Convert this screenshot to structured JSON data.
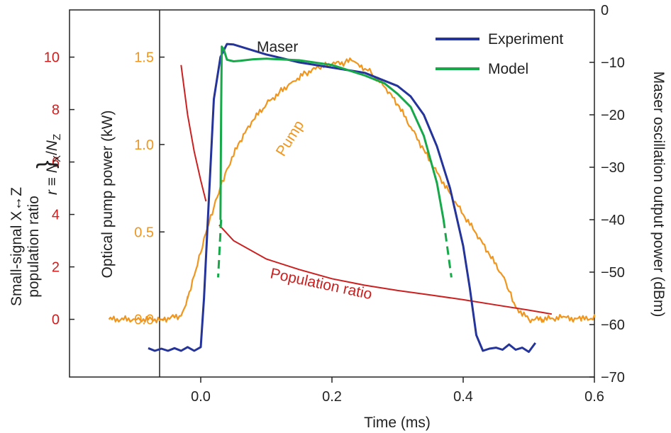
{
  "chart_data": {
    "type": "line",
    "xlabel": "Time (ms)",
    "xlim": [
      -0.2,
      0.6
    ],
    "x_ticks": [
      "0.0",
      "0.2",
      "0.4",
      "0.6"
    ],
    "y_left_outer": {
      "label_line1": "Small-signal X↔Z",
      "label_line2": "population ratio",
      "formula_r": "r",
      "formula_eq": " ≡ ",
      "formula_nx": "N",
      "formula_nx_sub": "X",
      "formula_slash": "/",
      "formula_nz": "N",
      "formula_nz_sub": "Z",
      "ticks": [
        "0",
        "2",
        "4",
        "6",
        "8",
        "10"
      ],
      "ylim": [
        -2.2,
        11.8
      ],
      "color": "#cc2020"
    },
    "y_left_inner": {
      "label": "Optical pump power (kW)",
      "ticks": [
        "0.0",
        "0.5",
        "1.0",
        "1.5"
      ],
      "ylim": [
        -0.33,
        1.77
      ],
      "color": "#f0961e"
    },
    "y_right": {
      "label": "Maser oscillation output power (dBm)",
      "ticks": [
        "0",
        "−10",
        "−20",
        "−30",
        "−40",
        "−50",
        "−60",
        "−70"
      ],
      "ylim": [
        -70,
        0
      ],
      "color": "#222222"
    },
    "legend": {
      "placement": "top-right",
      "entries": [
        {
          "label": "Experiment",
          "color": "#24349a"
        },
        {
          "label": "Model",
          "color": "#17a84a"
        }
      ]
    },
    "annotations": {
      "maser": "Maser",
      "pump": "Pump",
      "population": "Population ratio"
    },
    "series": [
      {
        "name": "Pump",
        "axis": "pump_kW",
        "color": "#f0961e",
        "x": [
          -0.14,
          -0.1,
          -0.06,
          -0.03,
          -0.02,
          -0.01,
          0.0,
          0.01,
          0.02,
          0.03,
          0.04,
          0.06,
          0.08,
          0.1,
          0.12,
          0.14,
          0.16,
          0.18,
          0.2,
          0.22,
          0.23,
          0.24,
          0.26,
          0.28,
          0.3,
          0.32,
          0.34,
          0.36,
          0.38,
          0.4,
          0.42,
          0.44,
          0.46,
          0.47,
          0.48,
          0.5,
          0.52,
          0.55,
          0.58,
          0.6
        ],
        "y": [
          0.0,
          0.0,
          0.0,
          0.02,
          0.12,
          0.25,
          0.38,
          0.52,
          0.64,
          0.76,
          0.86,
          1.02,
          1.14,
          1.23,
          1.3,
          1.36,
          1.41,
          1.44,
          1.46,
          1.47,
          1.48,
          1.46,
          1.41,
          1.33,
          1.23,
          1.1,
          0.97,
          0.84,
          0.72,
          0.6,
          0.49,
          0.37,
          0.25,
          0.16,
          0.07,
          0.0,
          0.0,
          0.01,
          0.0,
          0.01
        ]
      },
      {
        "name": "Population ratio",
        "axis": "ratio",
        "color": "#cc2020",
        "segments": [
          {
            "x": [
              -0.03,
              -0.02,
              -0.01,
              0.0,
              0.008
            ],
            "y": [
              9.7,
              7.8,
              6.4,
              5.3,
              4.5
            ]
          },
          {
            "x": [
              0.028,
              0.05,
              0.1,
              0.15,
              0.2,
              0.25,
              0.3,
              0.35,
              0.4,
              0.45,
              0.5,
              0.535
            ],
            "y": [
              3.6,
              3.0,
              2.3,
              1.9,
              1.55,
              1.3,
              1.1,
              0.93,
              0.75,
              0.55,
              0.35,
              0.2
            ]
          }
        ]
      },
      {
        "name": "Experiment",
        "axis": "dBm",
        "color": "#24349a",
        "x": [
          -0.08,
          -0.07,
          -0.06,
          -0.05,
          -0.04,
          -0.03,
          -0.02,
          -0.01,
          0.0,
          0.005,
          0.01,
          0.02,
          0.03,
          0.04,
          0.05,
          0.1,
          0.15,
          0.2,
          0.25,
          0.3,
          0.32,
          0.34,
          0.36,
          0.38,
          0.4,
          0.41,
          0.42,
          0.43,
          0.44,
          0.45,
          0.46,
          0.47,
          0.48,
          0.49,
          0.5,
          0.51
        ],
        "y": [
          -64.5,
          -65.0,
          -64.6,
          -65.0,
          -64.5,
          -65.0,
          -64.3,
          -65.0,
          -64.3,
          -55.0,
          -42.0,
          -17.0,
          -9.0,
          -6.5,
          -6.6,
          -8.5,
          -10.0,
          -11.0,
          -12.0,
          -14.5,
          -16.5,
          -20.0,
          -26.0,
          -34.0,
          -45.0,
          -53.0,
          -62.0,
          -65.0,
          -64.6,
          -64.4,
          -64.8,
          -63.8,
          -64.8,
          -64.4,
          -65.2,
          -63.5
        ]
      },
      {
        "name": "Model",
        "axis": "dBm",
        "color": "#17a84a",
        "x": [
          0.03,
          0.031,
          0.032,
          0.035,
          0.04,
          0.05,
          0.06,
          0.08,
          0.1,
          0.15,
          0.2,
          0.25,
          0.28,
          0.3,
          0.32,
          0.34,
          0.36,
          0.37
        ],
        "y": [
          -40.0,
          -20.0,
          -7.0,
          -7.5,
          -9.5,
          -9.8,
          -9.7,
          -9.4,
          -9.3,
          -9.6,
          -10.5,
          -12.5,
          -14.0,
          -16.0,
          -18.5,
          -24.0,
          -33.0,
          -40.0
        ],
        "dashed_segments": [
          {
            "x": [
              0.031,
              0.0265
            ],
            "y": [
              -40.0,
              -51.0
            ]
          },
          {
            "x": [
              0.37,
              0.382
            ],
            "y": [
              -40.0,
              -51.0
            ]
          }
        ]
      }
    ]
  }
}
